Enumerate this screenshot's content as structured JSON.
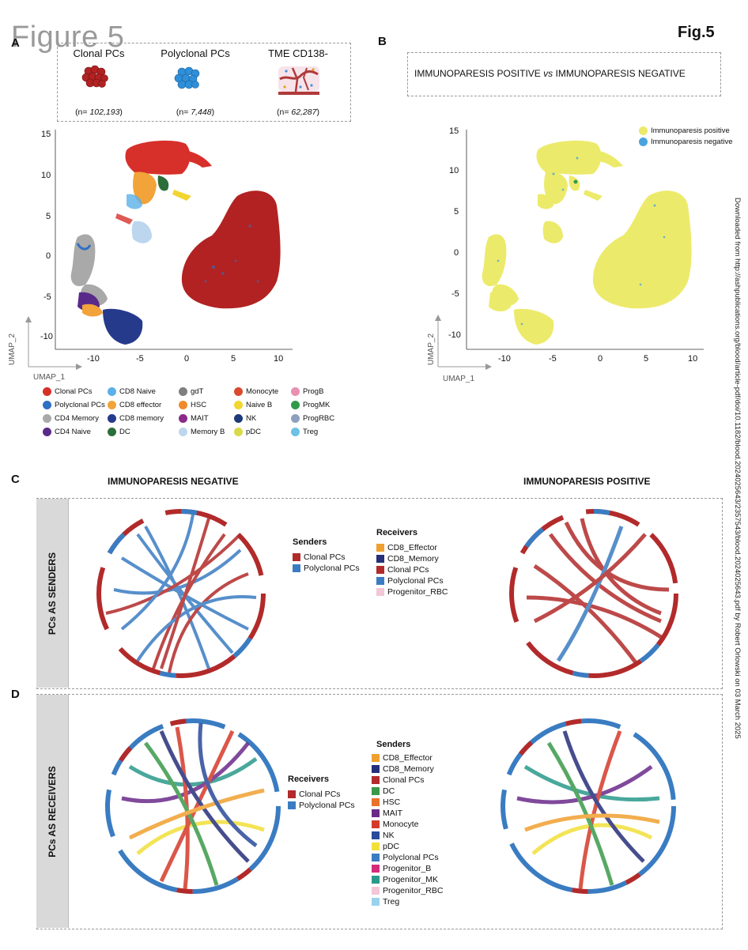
{
  "header": {
    "ghost_title": "Figure 5",
    "fig_label": "Fig.5"
  },
  "side_note": "Downloaded from http://ashpublications.org/blood/article-pdf/doi/10.1182/blood.2024025643/2357543/blood.2024025643.pdf by Robert Orlowski on 03 March 2025",
  "panel_a": {
    "letter": "A",
    "populations": [
      {
        "label": "Clonal PCs",
        "n_prefix": "(n= ",
        "n_value": "102,193",
        "n_suffix": ")",
        "color": "#b22222"
      },
      {
        "label": "Polyclonal PCs",
        "n_prefix": "(n= ",
        "n_value": "7,448",
        "n_suffix": ")",
        "color": "#2f8fd8"
      },
      {
        "label": "TME CD138-",
        "n_prefix": "(n= ",
        "n_value": "62,287",
        "n_suffix": ")",
        "color": "#c0392b"
      }
    ],
    "umap": {
      "xlabel": "UMAP_1",
      "ylabel": "UMAP_2",
      "x_ticks": [
        "-10",
        "-5",
        "0",
        "5",
        "10"
      ],
      "y_ticks": [
        "15",
        "10",
        "5",
        "0",
        "-5",
        "-10"
      ]
    },
    "legend": [
      {
        "label": "Clonal PCs",
        "color": "#d7302a"
      },
      {
        "label": "CD8 Naive",
        "color": "#5bb0e8"
      },
      {
        "label": "gdT",
        "color": "#7f7f7f"
      },
      {
        "label": "Monocyte",
        "color": "#d94a2e"
      },
      {
        "label": "ProgB",
        "color": "#e98fb1"
      },
      {
        "label": "Polyclonal PCs",
        "color": "#2f6fc4"
      },
      {
        "label": "CD8 effector",
        "color": "#f2a33a"
      },
      {
        "label": "HSC",
        "color": "#f08a2c"
      },
      {
        "label": "Naive B",
        "color": "#f2d52f"
      },
      {
        "label": "ProgMK",
        "color": "#2f9a4a"
      },
      {
        "label": "CD4 Memory",
        "color": "#a9a9a9"
      },
      {
        "label": "CD8 memory",
        "color": "#263a8c"
      },
      {
        "label": "MAIT",
        "color": "#8a2a8a"
      },
      {
        "label": "NK",
        "color": "#1f3a7a"
      },
      {
        "label": "ProgRBC",
        "color": "#8fa0bf"
      },
      {
        "label": "CD4 Naive",
        "color": "#5a2a8a"
      },
      {
        "label": "DC",
        "color": "#2c6e3a"
      },
      {
        "label": "Memory B",
        "color": "#bcd6ee"
      },
      {
        "label": "pDC",
        "color": "#d9d94a"
      },
      {
        "label": "Treg",
        "color": "#6ec0e4"
      }
    ]
  },
  "panel_b": {
    "letter": "B",
    "title_left": "IMMUNOPARESIS POSITIVE",
    "title_vs": "vs",
    "title_right": "IMMUNOPARESIS NEGATIVE",
    "legend": [
      {
        "label": "Immunoparesis positive",
        "color": "#ecea6a"
      },
      {
        "label": "Immunoparesis negative",
        "color": "#4aa3df"
      }
    ],
    "umap": {
      "xlabel": "UMAP_1",
      "ylabel": "UMAP_2",
      "x_ticks": [
        "-10",
        "-5",
        "0",
        "5",
        "10"
      ],
      "y_ticks": [
        "15",
        "10",
        "5",
        "0",
        "-5",
        "-10"
      ]
    }
  },
  "panel_c": {
    "letter": "C",
    "left_title": "IMMUNOPARESIS NEGATIVE",
    "right_title": "IMMUNOPARESIS POSITIVE",
    "row_label": "PCs AS SENDERS",
    "senders_title": "Senders",
    "senders": [
      {
        "label": "Clonal PCs",
        "color": "#b22a2a"
      },
      {
        "label": "Polyclonal PCs",
        "color": "#3a7cc2"
      }
    ],
    "receivers_title": "Receivers",
    "receivers": [
      {
        "label": "CD8_Effector",
        "color": "#f0a030"
      },
      {
        "label": "CD8_Memory",
        "color": "#262f7a"
      },
      {
        "label": "Clonal PCs",
        "color": "#b22a2a"
      },
      {
        "label": "Polyclonal PCs",
        "color": "#3a7cc2"
      },
      {
        "label": "Progenitor_RBC",
        "color": "#f3c6d8"
      }
    ]
  },
  "panel_d": {
    "letter": "D",
    "row_label": "PCs AS RECEIVERS",
    "receivers_title": "Receivers",
    "receivers": [
      {
        "label": "Clonal PCs",
        "color": "#b22a2a"
      },
      {
        "label": "Polyclonal PCs",
        "color": "#3a7cc2"
      }
    ],
    "senders_title": "Senders",
    "senders": [
      {
        "label": "CD8_Effector",
        "color": "#f0a030"
      },
      {
        "label": "CD8_Memory",
        "color": "#262f7a"
      },
      {
        "label": "Clonal PCs",
        "color": "#b22a2a"
      },
      {
        "label": "DC",
        "color": "#3a9a4a"
      },
      {
        "label": "HSC",
        "color": "#e8742a"
      },
      {
        "label": "MAIT",
        "color": "#6a2a8a"
      },
      {
        "label": "Monocyte",
        "color": "#d43a2a"
      },
      {
        "label": "NK",
        "color": "#2a4a9a"
      },
      {
        "label": "pDC",
        "color": "#f2e03a"
      },
      {
        "label": "Polyclonal PCs",
        "color": "#3a7cc2"
      },
      {
        "label": "Progenitor_B",
        "color": "#d42a7a"
      },
      {
        "label": "Progenitor_MK",
        "color": "#2a9a8a"
      },
      {
        "label": "Progenitor_RBC",
        "color": "#f3c6d8"
      },
      {
        "label": "Treg",
        "color": "#9ad2ee"
      }
    ]
  }
}
